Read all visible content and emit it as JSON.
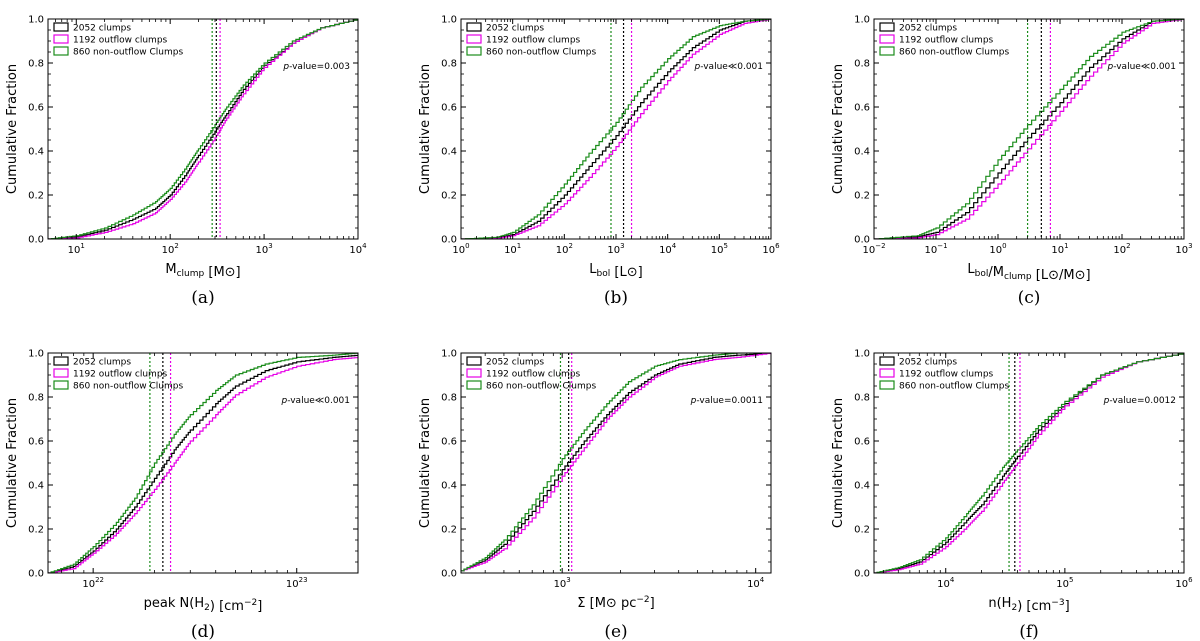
{
  "colors": {
    "all": "#000000",
    "outflow": "#e600e6",
    "nonoutflow": "#1a8c1a"
  },
  "legend": [
    "2052 clumps",
    "1192 outflow clumps",
    "860 non-outflow Clumps"
  ],
  "ylabel": "Cumulative Fraction",
  "chart_data": [
    {
      "panel": "a",
      "caption": "(a)",
      "type": "line",
      "xscale": "log",
      "xlim": [
        5,
        10000
      ],
      "ylim": [
        0,
        1.0
      ],
      "xticks": [
        {
          "v": 10,
          "t": "10",
          "e": "1"
        },
        {
          "v": 100,
          "t": "10",
          "e": "2"
        },
        {
          "v": 1000,
          "t": "10",
          "e": "3"
        },
        {
          "v": 10000,
          "t": "10",
          "e": "4"
        }
      ],
      "yticks": [
        "0.0",
        "0.2",
        "0.4",
        "0.6",
        "0.8",
        "1.0"
      ],
      "xlabel": {
        "main": "M",
        "sub": "clump",
        "unit": "[M⊙]"
      },
      "pvalue": "p-value=0.003",
      "medians": {
        "all": 310,
        "outflow": 340,
        "nonoutflow": 280
      },
      "series": [
        {
          "name": "2052 clumps",
          "key": "all",
          "x": [
            5,
            10,
            20,
            40,
            70,
            100,
            150,
            200,
            300,
            400,
            600,
            1000,
            2000,
            4000,
            10000
          ],
          "y": [
            0,
            0.01,
            0.04,
            0.09,
            0.14,
            0.2,
            0.3,
            0.38,
            0.49,
            0.57,
            0.68,
            0.79,
            0.89,
            0.96,
            1.0
          ]
        },
        {
          "name": "1192 outflow clumps",
          "key": "outflow",
          "x": [
            5,
            10,
            20,
            40,
            70,
            100,
            150,
            200,
            300,
            400,
            600,
            1000,
            2000,
            4000,
            10000
          ],
          "y": [
            0,
            0.005,
            0.03,
            0.07,
            0.12,
            0.18,
            0.27,
            0.35,
            0.46,
            0.55,
            0.66,
            0.78,
            0.89,
            0.96,
            1.0
          ]
        },
        {
          "name": "860 non-outflow Clumps",
          "key": "nonoutflow",
          "x": [
            5,
            10,
            20,
            40,
            70,
            100,
            150,
            200,
            300,
            400,
            600,
            1000,
            2000,
            4000,
            10000
          ],
          "y": [
            0,
            0.015,
            0.05,
            0.11,
            0.17,
            0.23,
            0.33,
            0.41,
            0.52,
            0.6,
            0.7,
            0.8,
            0.9,
            0.96,
            1.0
          ]
        }
      ]
    },
    {
      "panel": "b",
      "caption": "(b)",
      "type": "line",
      "xscale": "log",
      "xlim": [
        1,
        1000000
      ],
      "ylim": [
        0,
        1.0
      ],
      "xticks": [
        {
          "v": 1,
          "t": "10",
          "e": "0"
        },
        {
          "v": 10,
          "t": "10",
          "e": "1"
        },
        {
          "v": 100,
          "t": "10",
          "e": "2"
        },
        {
          "v": 1000,
          "t": "10",
          "e": "3"
        },
        {
          "v": 10000,
          "t": "10",
          "e": "4"
        },
        {
          "v": 100000,
          "t": "10",
          "e": "5"
        },
        {
          "v": 1000000,
          "t": "10",
          "e": "6"
        }
      ],
      "yticks": [
        "0.0",
        "0.2",
        "0.4",
        "0.6",
        "0.8",
        "1.0"
      ],
      "xlabel": {
        "main": "L",
        "sub": "bol",
        "unit": "[L⊙]"
      },
      "pvalue": "p-value≪0.001",
      "medians": {
        "all": 1400,
        "outflow": 2000,
        "nonoutflow": 800
      },
      "series": [
        {
          "name": "2052 clumps",
          "key": "all",
          "x": [
            1,
            5,
            10,
            30,
            100,
            300,
            1000,
            3000,
            10000,
            30000,
            100000,
            300000,
            1000000
          ],
          "y": [
            0,
            0.005,
            0.02,
            0.08,
            0.2,
            0.33,
            0.47,
            0.62,
            0.76,
            0.87,
            0.95,
            0.99,
            1.0
          ]
        },
        {
          "name": "1192 outflow clumps",
          "key": "outflow",
          "x": [
            1,
            5,
            10,
            30,
            100,
            300,
            1000,
            3000,
            10000,
            30000,
            100000,
            300000,
            1000000
          ],
          "y": [
            0,
            0.003,
            0.015,
            0.06,
            0.16,
            0.28,
            0.42,
            0.57,
            0.72,
            0.84,
            0.93,
            0.98,
            1.0
          ]
        },
        {
          "name": "860 non-outflow Clumps",
          "key": "nonoutflow",
          "x": [
            1,
            5,
            10,
            30,
            100,
            300,
            1000,
            3000,
            10000,
            30000,
            100000,
            300000,
            1000000
          ],
          "y": [
            0,
            0.008,
            0.03,
            0.11,
            0.25,
            0.39,
            0.53,
            0.69,
            0.82,
            0.92,
            0.97,
            0.99,
            1.0
          ]
        }
      ]
    },
    {
      "panel": "c",
      "caption": "(c)",
      "type": "line",
      "xscale": "log",
      "xlim": [
        0.01,
        1000
      ],
      "ylim": [
        0,
        1.0
      ],
      "xticks": [
        {
          "v": 0.01,
          "t": "10",
          "e": "−2"
        },
        {
          "v": 0.1,
          "t": "10",
          "e": "−1"
        },
        {
          "v": 1,
          "t": "10",
          "e": "0"
        },
        {
          "v": 10,
          "t": "10",
          "e": "1"
        },
        {
          "v": 100,
          "t": "10",
          "e": "2"
        },
        {
          "v": 1000,
          "t": "10",
          "e": "3"
        }
      ],
      "yticks": [
        "0.0",
        "0.2",
        "0.4",
        "0.6",
        "0.8",
        "1.0"
      ],
      "xlabel": {
        "main": "L",
        "sub": "bol",
        "mid": "/M",
        "sub2": "clump",
        "unit": "[L⊙/M⊙]"
      },
      "pvalue": "p-value≪0.001",
      "medians": {
        "all": 5.0,
        "outflow": 7.0,
        "nonoutflow": 3.0
      },
      "series": [
        {
          "name": "2052 clumps",
          "key": "all",
          "x": [
            0.01,
            0.05,
            0.1,
            0.3,
            1,
            3,
            10,
            30,
            100,
            300,
            1000
          ],
          "y": [
            0,
            0.01,
            0.03,
            0.12,
            0.3,
            0.46,
            0.62,
            0.78,
            0.91,
            0.99,
            1.0
          ]
        },
        {
          "name": "1192 outflow clumps",
          "key": "outflow",
          "x": [
            0.01,
            0.05,
            0.1,
            0.3,
            1,
            3,
            10,
            30,
            100,
            300,
            1000
          ],
          "y": [
            0,
            0.005,
            0.02,
            0.09,
            0.25,
            0.41,
            0.58,
            0.74,
            0.89,
            0.98,
            1.0
          ]
        },
        {
          "name": "860 non-outflow Clumps",
          "key": "nonoutflow",
          "x": [
            0.01,
            0.05,
            0.1,
            0.3,
            1,
            3,
            10,
            30,
            100,
            300,
            1000
          ],
          "y": [
            0,
            0.015,
            0.05,
            0.16,
            0.36,
            0.52,
            0.68,
            0.83,
            0.94,
            0.99,
            1.0
          ]
        }
      ]
    },
    {
      "panel": "d",
      "caption": "(d)",
      "type": "line",
      "xscale": "log",
      "xlim": [
        6000000000000000000000,
        200000000000000000000000
      ],
      "ylim": [
        0,
        1.0
      ],
      "xticks": [
        {
          "v": 10000000000000000000000,
          "t": "10",
          "e": "22"
        },
        {
          "v": 100000000000000000000000,
          "t": "10",
          "e": "23"
        }
      ],
      "yticks": [
        "0.0",
        "0.2",
        "0.4",
        "0.6",
        "0.8",
        "1.0"
      ],
      "xlabel": {
        "main": "peak N(H",
        "sub": "2",
        "tail": ")",
        "unit": "[cm",
        "unitsup": "−2",
        "unitend": "]"
      },
      "pvalue": "p-value≪0.001",
      "medians": {
        "all": 22000000000000000000000,
        "outflow": 24000000000000000000000,
        "nonoutflow": 19000000000000000000000
      },
      "series": [
        {
          "name": "2052 clumps",
          "key": "all",
          "x": [
            6000000000000000000000,
            8000000000000000000000,
            10000000000000000000000,
            13000000000000000000000,
            16000000000000000000000,
            20000000000000000000000,
            25000000000000000000000,
            30000000000000000000000,
            40000000000000000000000,
            50000000000000000000000,
            70000000000000000000000,
            100000000000000000000000,
            150000000000000000000000,
            200000000000000000000000
          ],
          "y": [
            0,
            0.03,
            0.1,
            0.2,
            0.3,
            0.43,
            0.56,
            0.65,
            0.77,
            0.85,
            0.92,
            0.96,
            0.98,
            0.99
          ]
        },
        {
          "name": "1192 outflow clumps",
          "key": "outflow",
          "x": [
            6000000000000000000000,
            8000000000000000000000,
            10000000000000000000000,
            13000000000000000000000,
            16000000000000000000000,
            20000000000000000000000,
            25000000000000000000000,
            30000000000000000000000,
            40000000000000000000000,
            50000000000000000000000,
            70000000000000000000000,
            100000000000000000000000,
            150000000000000000000000,
            200000000000000000000000
          ],
          "y": [
            0,
            0.02,
            0.09,
            0.18,
            0.27,
            0.38,
            0.5,
            0.6,
            0.72,
            0.81,
            0.89,
            0.94,
            0.97,
            0.98
          ]
        },
        {
          "name": "860 non-outflow Clumps",
          "key": "nonoutflow",
          "x": [
            6000000000000000000000,
            8000000000000000000000,
            10000000000000000000000,
            13000000000000000000000,
            16000000000000000000000,
            20000000000000000000000,
            25000000000000000000000,
            30000000000000000000000,
            40000000000000000000000,
            50000000000000000000000,
            70000000000000000000000,
            100000000000000000000000,
            150000000000000000000000,
            200000000000000000000000
          ],
          "y": [
            0,
            0.04,
            0.12,
            0.23,
            0.34,
            0.5,
            0.63,
            0.72,
            0.83,
            0.9,
            0.95,
            0.98,
            0.99,
            1.0
          ]
        }
      ]
    },
    {
      "panel": "e",
      "caption": "(e)",
      "type": "line",
      "xscale": "log",
      "xlim": [
        300,
        12000
      ],
      "ylim": [
        0,
        1.0
      ],
      "xticks": [
        {
          "v": 1000,
          "t": "10",
          "e": "3"
        },
        {
          "v": 10000,
          "t": "10",
          "e": "4"
        }
      ],
      "yticks": [
        "0.0",
        "0.2",
        "0.4",
        "0.6",
        "0.8",
        "1.0"
      ],
      "xlabel": {
        "main": "Σ",
        "unit": "[M⊙ pc",
        "unitsup": "−2",
        "unitend": "]"
      },
      "pvalue": "p-value=0.0011",
      "medians": {
        "all": 1080,
        "outflow": 1120,
        "nonoutflow": 980
      },
      "series": [
        {
          "name": "2052 clumps",
          "key": "all",
          "x": [
            300,
            400,
            500,
            700,
            1000,
            1300,
            1700,
            2200,
            3000,
            4000,
            6000,
            8000,
            12000
          ],
          "y": [
            0.01,
            0.06,
            0.13,
            0.28,
            0.47,
            0.6,
            0.72,
            0.82,
            0.9,
            0.95,
            0.98,
            0.99,
            1.0
          ]
        },
        {
          "name": "1192 outflow clumps",
          "key": "outflow",
          "x": [
            300,
            400,
            500,
            700,
            1000,
            1300,
            1700,
            2200,
            3000,
            4000,
            6000,
            8000,
            12000
          ],
          "y": [
            0.01,
            0.05,
            0.11,
            0.25,
            0.44,
            0.57,
            0.7,
            0.8,
            0.89,
            0.94,
            0.97,
            0.98,
            1.0
          ]
        },
        {
          "name": "860 non-outflow Clumps",
          "key": "nonoutflow",
          "x": [
            300,
            400,
            500,
            700,
            1000,
            1300,
            1700,
            2200,
            3000,
            4000,
            6000,
            8000,
            12000
          ],
          "y": [
            0.01,
            0.07,
            0.15,
            0.31,
            0.52,
            0.65,
            0.77,
            0.87,
            0.94,
            0.97,
            0.99,
            1.0,
            1.0
          ]
        }
      ]
    },
    {
      "panel": "f",
      "caption": "(f)",
      "type": "line",
      "xscale": "log",
      "xlim": [
        2500,
        1000000
      ],
      "ylim": [
        0,
        1.0
      ],
      "xticks": [
        {
          "v": 10000,
          "t": "10",
          "e": "4"
        },
        {
          "v": 100000,
          "t": "10",
          "e": "5"
        },
        {
          "v": 1000000,
          "t": "10",
          "e": "6"
        }
      ],
      "yticks": [
        "0.0",
        "0.2",
        "0.4",
        "0.6",
        "0.8",
        "1.0"
      ],
      "xlabel": {
        "main": "n(H",
        "sub": "2",
        "tail": ")",
        "unit": "[cm",
        "unitsup": "−3",
        "unitend": "]"
      },
      "pvalue": "p-value=0.0012",
      "medians": {
        "all": 38000,
        "outflow": 42000,
        "nonoutflow": 34000
      },
      "series": [
        {
          "name": "2052 clumps",
          "key": "all",
          "x": [
            2500,
            4000,
            6000,
            10000,
            15000,
            20000,
            30000,
            40000,
            60000,
            100000,
            200000,
            400000,
            1000000
          ],
          "y": [
            0,
            0.02,
            0.05,
            0.14,
            0.24,
            0.31,
            0.44,
            0.53,
            0.65,
            0.77,
            0.9,
            0.96,
            1.0
          ]
        },
        {
          "name": "1192 outflow clumps",
          "key": "outflow",
          "x": [
            2500,
            4000,
            6000,
            10000,
            15000,
            20000,
            30000,
            40000,
            60000,
            100000,
            200000,
            400000,
            1000000
          ],
          "y": [
            0,
            0.015,
            0.04,
            0.12,
            0.21,
            0.28,
            0.41,
            0.5,
            0.63,
            0.76,
            0.89,
            0.96,
            1.0
          ]
        },
        {
          "name": "860 non-outflow Clumps",
          "key": "nonoutflow",
          "x": [
            2500,
            4000,
            6000,
            10000,
            15000,
            20000,
            30000,
            40000,
            60000,
            100000,
            200000,
            400000,
            1000000
          ],
          "y": [
            0,
            0.025,
            0.06,
            0.16,
            0.27,
            0.35,
            0.48,
            0.56,
            0.67,
            0.78,
            0.9,
            0.96,
            1.0
          ]
        }
      ]
    }
  ]
}
